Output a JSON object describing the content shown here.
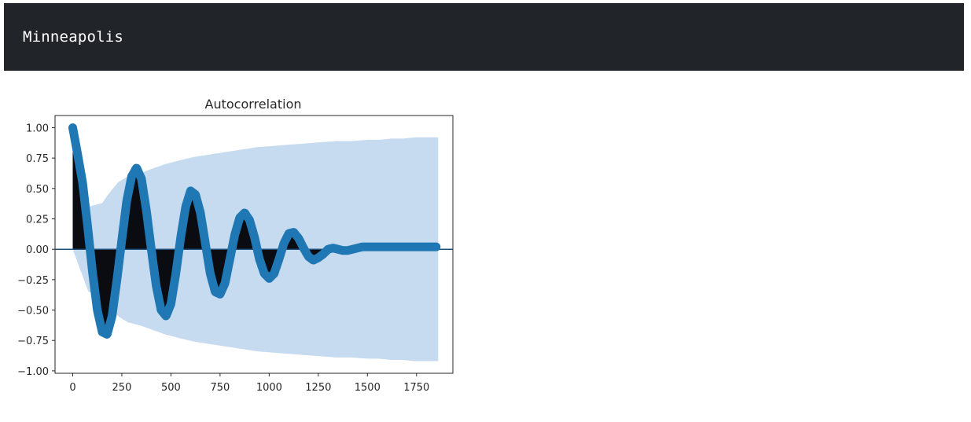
{
  "header": {
    "title": "Minneapolis"
  },
  "chart_data": {
    "type": "stem",
    "title": "Autocorrelation",
    "xlabel": "",
    "ylabel": "",
    "xlim": [
      -90,
      1935
    ],
    "ylim": [
      -1.02,
      1.1
    ],
    "xticks": [
      0,
      250,
      500,
      750,
      1000,
      1250,
      1500,
      1750
    ],
    "xtick_labels": [
      "0",
      "250",
      "500",
      "750",
      "1000",
      "1250",
      "1500",
      "1750"
    ],
    "yticks": [
      1.0,
      0.75,
      0.5,
      0.25,
      0.0,
      -0.25,
      -0.5,
      -0.75,
      -1.0
    ],
    "ytick_labels": [
      "1.00",
      "0.75",
      "0.50",
      "0.25",
      "0.00",
      "−0.25",
      "−0.50",
      "−0.75",
      "−1.00"
    ],
    "lags": [
      0,
      25,
      50,
      75,
      100,
      125,
      150,
      175,
      200,
      225,
      250,
      275,
      300,
      325,
      350,
      375,
      400,
      425,
      450,
      475,
      500,
      525,
      550,
      575,
      600,
      625,
      650,
      675,
      700,
      725,
      750,
      775,
      800,
      825,
      850,
      875,
      900,
      925,
      950,
      975,
      1000,
      1025,
      1050,
      1075,
      1100,
      1125,
      1150,
      1175,
      1200,
      1225,
      1250,
      1275,
      1300,
      1325,
      1350,
      1375,
      1400,
      1425,
      1450,
      1475,
      1500,
      1525,
      1550,
      1575,
      1600,
      1625,
      1650,
      1675,
      1700,
      1725,
      1750,
      1775,
      1800,
      1825,
      1850
    ],
    "acf": [
      1.0,
      0.78,
      0.55,
      0.2,
      -0.18,
      -0.5,
      -0.68,
      -0.7,
      -0.55,
      -0.25,
      0.08,
      0.4,
      0.6,
      0.67,
      0.58,
      0.32,
      0.0,
      -0.3,
      -0.5,
      -0.55,
      -0.45,
      -0.2,
      0.1,
      0.35,
      0.48,
      0.45,
      0.3,
      0.05,
      -0.2,
      -0.35,
      -0.37,
      -0.28,
      -0.08,
      0.12,
      0.26,
      0.3,
      0.24,
      0.1,
      -0.08,
      -0.2,
      -0.24,
      -0.2,
      -0.08,
      0.05,
      0.13,
      0.14,
      0.09,
      0.01,
      -0.06,
      -0.09,
      -0.07,
      -0.04,
      0.0,
      0.01,
      0.0,
      -0.01,
      -0.01,
      0.0,
      0.01,
      0.02,
      0.02,
      0.02,
      0.02,
      0.02,
      0.02,
      0.02,
      0.02,
      0.02,
      0.02,
      0.02,
      0.02,
      0.02,
      0.02,
      0.02,
      0.02
    ],
    "confint_upper": [
      0.0,
      0.35,
      0.38,
      0.45,
      0.55,
      0.6,
      0.63,
      0.66,
      0.7,
      0.73,
      0.76,
      0.78,
      0.8,
      0.82,
      0.84,
      0.85,
      0.86,
      0.87,
      0.88,
      0.89,
      0.89,
      0.9,
      0.9,
      0.91,
      0.91,
      0.92,
      0.92,
      0.92,
      0.92,
      0.92
    ],
    "confint_upper_lags": [
      0,
      80,
      150,
      180,
      230,
      280,
      350,
      400,
      470,
      540,
      620,
      700,
      780,
      860,
      940,
      1020,
      1100,
      1180,
      1260,
      1340,
      1420,
      1500,
      1560,
      1620,
      1680,
      1740,
      1780,
      1820,
      1850,
      1860
    ],
    "colors": {
      "line": "#1f77b4",
      "band": "#c6dbef",
      "fill": "#0b0b12",
      "axis": "#262626",
      "header": "#212529",
      "header_text": "#ffffff"
    }
  }
}
